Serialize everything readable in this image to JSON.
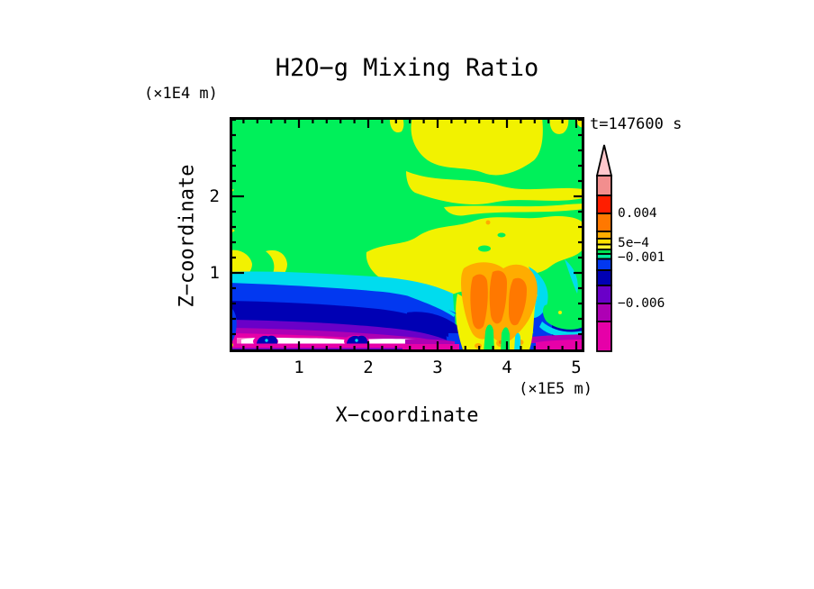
{
  "title": "H2O−g Mixing Ratio",
  "time_label": "t=147600 s",
  "x_axis": {
    "title": "X−coordinate",
    "unit": "(×1E5 m)",
    "tick_labels": [
      "1",
      "2",
      "3",
      "4",
      "5"
    ]
  },
  "z_axis": {
    "title": "Z−coordinate",
    "unit": "(×1E4 m)",
    "tick_labels": [
      "2",
      "1"
    ]
  },
  "colorbar": {
    "labels": [
      "0.004",
      "5e−4",
      "−0.001",
      "−0.006"
    ],
    "arrow_tip_color": "#FFC8CC",
    "segment_colors_top_to_bottom": [
      "#F28E8E",
      "#FF1E00",
      "#FF7800",
      "#FFAC00",
      "#FFE000",
      "#FFF830",
      "#00E050",
      "#00EFA0",
      "#0238F0",
      "#0000B4",
      "#6A00C8",
      "#AE00B4",
      "#E600A8"
    ]
  },
  "palette": {
    "green": "#00F05A",
    "yellow": "#F2F200",
    "yellow2": "#FFF830",
    "amber": "#FFAC00",
    "orange": "#FF7800",
    "red": "#FF1E00",
    "salmon": "#F28E8E",
    "tip_pink": "#FFC8CC",
    "cyan": "#00DCEE",
    "spring": "#00EFA0",
    "blue": "#0238F0",
    "navy": "#0000B4",
    "purple": "#6A00C8",
    "violet": "#AE00B4",
    "magenta": "#E600A8",
    "pink": "#FA6EC8",
    "white": "#FFFFFF",
    "frame": "#000000"
  },
  "chart_data": {
    "type": "heatmap",
    "subtype": "filled-contour",
    "title": "H2O−g Mixing Ratio",
    "time_s": 147600,
    "xlabel": "X−coordinate (×1E5 m)",
    "ylabel": "Z−coordinate (×1E4 m)",
    "x_range": [
      0,
      5.1
    ],
    "z_range": [
      0,
      3.0
    ],
    "x_major_ticks": [
      1,
      2,
      3,
      4,
      5
    ],
    "z_major_ticks": [
      1,
      2
    ],
    "minor_tick_step": 0.2,
    "labeled_contour_levels": [
      0.004,
      0.0005,
      -0.001,
      -0.006
    ],
    "color_bands_top_to_bottom": [
      "salmon",
      "red",
      "orange",
      "amber",
      "yellow",
      "yellow2",
      "green",
      "spring",
      "blue",
      "navy",
      "purple",
      "violet",
      "magenta"
    ],
    "under_range_color": "white",
    "legend_position": "right",
    "grid": false,
    "features": [
      "background of domain is uniform green (near-zero band)",
      "yellow streaky layers and columns touch the top boundary between x≈1.3 and 2.5 (×1E5 m), z≈2.3–3.0",
      "large yellow anvil cloud centered near x≈3.5–5.1, z≈0.7–1.6 with small green holes",
      "convective plume with amber/orange cores at x≈3.4–3.8, z≈0.1–0.9 descending to the surface",
      "cyan arcs flank the plume on both sides",
      "stratified low layers on the left: green→cyan→blue→navy→purple→violet→magenta with depth",
      "white under-range layer near the surface from x≈0.2 to ≈3.2 at z≈0.1–0.25",
      "two small navy bumps with cyan cores pierce the white layer near x≈0.55 and x≈1.85",
      "magenta/violet surface strips near the bottom boundary on both sides",
      "green/cyan wedge intruding at lower right near x≈4.6–5.1"
    ]
  }
}
